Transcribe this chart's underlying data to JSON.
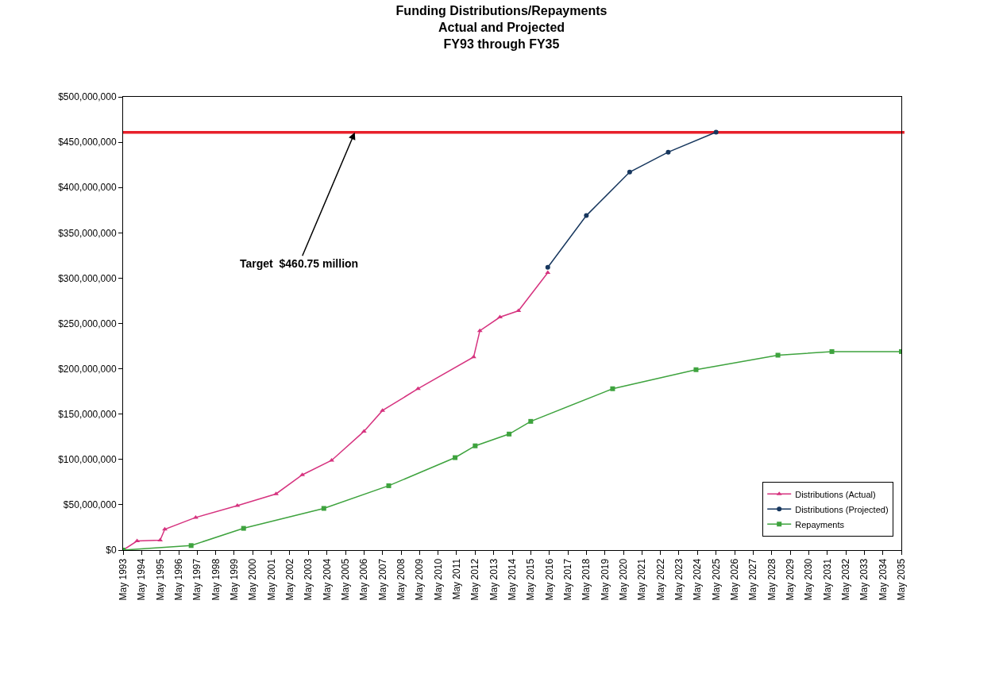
{
  "chart_data": {
    "type": "line",
    "title": "Funding Distributions/Repayments\nActual and Projected\nFY93 through FY35",
    "series": [
      {
        "name": "Distributions (Actual)",
        "color": "#d6337f",
        "marker": "triangle",
        "x": [
          "1993-05",
          "1994-02",
          "1995-05",
          "1995-08",
          "1997-04",
          "1999-07",
          "2001-08",
          "2003-01",
          "2004-08",
          "2006-05",
          "2007-05",
          "2009-04",
          "2012-04",
          "2012-08",
          "2013-09",
          "2014-09",
          "2016-04"
        ],
        "values": [
          0,
          10000000,
          11000000,
          23000000,
          36000000,
          49000000,
          62000000,
          83000000,
          99000000,
          131000000,
          154000000,
          178000000,
          213000000,
          242000000,
          257000000,
          264000000,
          306000000
        ]
      },
      {
        "name": "Distributions (Projected)",
        "color": "#17375e",
        "marker": "circle",
        "x": [
          "2016-04",
          "2018-05",
          "2020-09",
          "2022-10",
          "2025-05"
        ],
        "values": [
          312000000,
          369000000,
          417000000,
          439000000,
          461000000
        ]
      },
      {
        "name": "Repayments",
        "color": "#3ea33e",
        "marker": "square",
        "x": [
          "1993-05",
          "1997-01",
          "1999-11",
          "2004-03",
          "2007-09",
          "2011-04",
          "2012-05",
          "2014-03",
          "2015-05",
          "2019-10",
          "2024-04",
          "2028-09",
          "2031-08",
          "2035-05"
        ],
        "values": [
          0,
          5000000,
          24000000,
          46000000,
          71000000,
          102000000,
          115000000,
          128000000,
          142000000,
          178000000,
          199000000,
          215000000,
          219000000,
          219000000
        ]
      }
    ],
    "ref_lines": [
      {
        "axis": "y",
        "value": 460750000,
        "color": "#e8202a",
        "line_style": "solid"
      }
    ],
    "annotations": [
      {
        "text": "Target  $460.75 million",
        "x": "2005-11",
        "y": 460750000
      }
    ],
    "xlim": [
      "1993-05",
      "2035-05"
    ],
    "xticks": [
      {
        "value": "1993-05",
        "label": "May 1993"
      },
      {
        "value": "1994-05",
        "label": "May 1994"
      },
      {
        "value": "1995-05",
        "label": "May 1995"
      },
      {
        "value": "1996-05",
        "label": "May 1996"
      },
      {
        "value": "1997-05",
        "label": "May 1997"
      },
      {
        "value": "1998-05",
        "label": "May 1998"
      },
      {
        "value": "1999-05",
        "label": "May 1999"
      },
      {
        "value": "2000-05",
        "label": "May 2000"
      },
      {
        "value": "2001-05",
        "label": "May 2001"
      },
      {
        "value": "2002-05",
        "label": "May 2002"
      },
      {
        "value": "2003-05",
        "label": "May 2003"
      },
      {
        "value": "2004-05",
        "label": "May 2004"
      },
      {
        "value": "2005-05",
        "label": "May 2005"
      },
      {
        "value": "2006-05",
        "label": "May 2006"
      },
      {
        "value": "2007-05",
        "label": "May 2007"
      },
      {
        "value": "2008-05",
        "label": "May 2008"
      },
      {
        "value": "2009-05",
        "label": "May 2009"
      },
      {
        "value": "2010-05",
        "label": "May 2010"
      },
      {
        "value": "2011-05",
        "label": "May 2011"
      },
      {
        "value": "2012-05",
        "label": "May 2012"
      },
      {
        "value": "2013-05",
        "label": "May 2013"
      },
      {
        "value": "2014-05",
        "label": "May 2014"
      },
      {
        "value": "2015-05",
        "label": "May 2015"
      },
      {
        "value": "2016-05",
        "label": "May 2016"
      },
      {
        "value": "2017-05",
        "label": "May 2017"
      },
      {
        "value": "2018-05",
        "label": "May 2018"
      },
      {
        "value": "2019-05",
        "label": "May 2019"
      },
      {
        "value": "2020-05",
        "label": "May 2020"
      },
      {
        "value": "2021-05",
        "label": "May 2021"
      },
      {
        "value": "2022-05",
        "label": "May 2022"
      },
      {
        "value": "2023-05",
        "label": "May 2023"
      },
      {
        "value": "2024-05",
        "label": "May 2024"
      },
      {
        "value": "2025-05",
        "label": "May 2025"
      },
      {
        "value": "2026-05",
        "label": "May 2026"
      },
      {
        "value": "2027-05",
        "label": "May 2027"
      },
      {
        "value": "2028-05",
        "label": "May 2028"
      },
      {
        "value": "2029-05",
        "label": "May 2029"
      },
      {
        "value": "2030-05",
        "label": "May 2030"
      },
      {
        "value": "2031-05",
        "label": "May 2031"
      },
      {
        "value": "2032-05",
        "label": "May 2032"
      },
      {
        "value": "2033-05",
        "label": "May 2033"
      },
      {
        "value": "2034-05",
        "label": "May 2034"
      },
      {
        "value": "2035-05",
        "label": "May 2035"
      }
    ],
    "ylim": [
      0,
      500000000
    ],
    "yticks": [
      {
        "value": 0,
        "label": "$0"
      },
      {
        "value": 50000000,
        "label": "$50,000,000"
      },
      {
        "value": 100000000,
        "label": "$100,000,000"
      },
      {
        "value": 150000000,
        "label": "$150,000,000"
      },
      {
        "value": 200000000,
        "label": "$200,000,000"
      },
      {
        "value": 250000000,
        "label": "$250,000,000"
      },
      {
        "value": 300000000,
        "label": "$300,000,000"
      },
      {
        "value": 350000000,
        "label": "$350,000,000"
      },
      {
        "value": 400000000,
        "label": "$400,000,000"
      },
      {
        "value": 450000000,
        "label": "$450,000,000"
      },
      {
        "value": 500000000,
        "label": "$500,000,000"
      }
    ],
    "legend": "bottom right"
  }
}
